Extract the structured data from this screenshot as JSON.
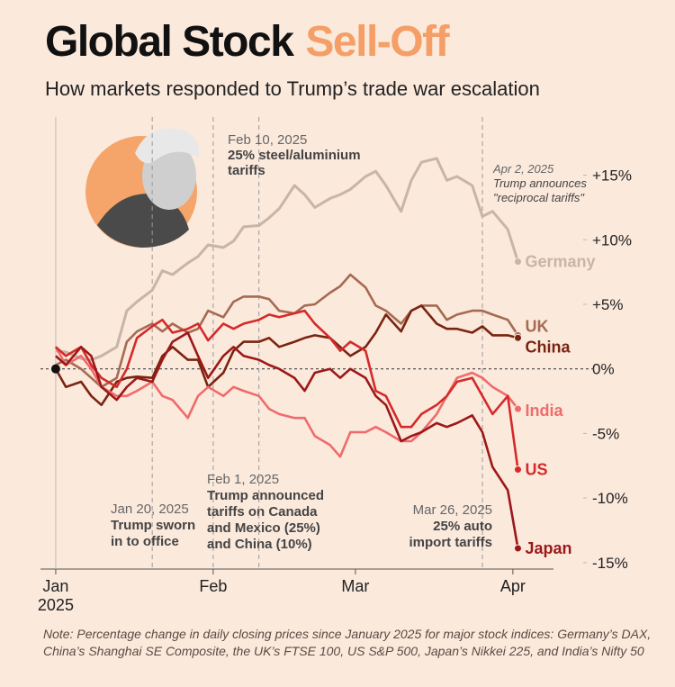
{
  "chart_data": {
    "type": "line",
    "title": "Global Stock",
    "title_highlight": "Sell-Off",
    "subtitle": "How markets responded to Trump’s trade war escalation",
    "note": "Note: Percentage change in daily closing prices since January 2025 for major stock indices: Germany’s DAX, China’s Shanghai SE Composite, the UK’s FTSE 100, US S&P 500, Japan’s Nikkei 225, and India’s Nifty 50",
    "x_axis_year": "2025",
    "x": [
      1,
      3,
      6,
      8,
      10,
      13,
      15,
      17,
      20,
      22,
      24,
      27,
      29,
      31,
      34,
      36,
      38,
      41,
      43,
      45,
      48,
      50,
      52,
      55,
      57,
      59,
      62,
      64,
      66,
      69,
      71,
      73,
      76,
      78,
      80,
      83,
      85,
      87,
      90,
      92
    ],
    "xlim": [
      -2,
      99
    ],
    "xticks": [
      {
        "value": 1,
        "label": "Jan"
      },
      {
        "value": 32,
        "label": "Feb"
      },
      {
        "value": 60,
        "label": "Mar"
      },
      {
        "value": 91,
        "label": "Apr"
      }
    ],
    "ylim": [
      -15.5,
      19.5
    ],
    "yticks": [
      {
        "value": 15,
        "label": "+15%"
      },
      {
        "value": 10,
        "label": "+10%"
      },
      {
        "value": 5,
        "label": "+5%"
      },
      {
        "value": 0,
        "label": "0%"
      },
      {
        "value": -5,
        "label": "-5%"
      },
      {
        "value": -10,
        "label": "-10%"
      },
      {
        "value": -15,
        "label": "-15%"
      }
    ],
    "series": [
      {
        "name": "Germany",
        "color": "#c9b4a5",
        "values": [
          1.4,
          1.3,
          0.8,
          0.7,
          1.0,
          1.7,
          4.5,
          5.2,
          6.1,
          7.6,
          7.3,
          8.2,
          8.7,
          9.6,
          9.4,
          9.9,
          11.0,
          11.1,
          11.7,
          12.4,
          14.2,
          13.5,
          12.5,
          13.2,
          13.5,
          13.9,
          14.9,
          15.3,
          14.2,
          12.2,
          14.6,
          16.0,
          16.3,
          14.6,
          14.9,
          14.2,
          11.8,
          12.2,
          10.8,
          8.3
        ]
      },
      {
        "name": "UK",
        "color": "#a56a52",
        "values": [
          0.3,
          0.7,
          0,
          -0.7,
          -1.4,
          -0.7,
          2.1,
          2.9,
          3.5,
          2.9,
          3.5,
          2.8,
          3.1,
          4.5,
          4.0,
          5.2,
          5.6,
          5.6,
          5.4,
          4.5,
          4.3,
          4.9,
          5.0,
          5.9,
          6.4,
          7.3,
          6.3,
          4.9,
          4.5,
          3.5,
          4.5,
          4.9,
          4.9,
          3.8,
          4.2,
          4.5,
          4.5,
          4.2,
          3.8,
          2.6
        ]
      },
      {
        "name": "China",
        "color": "#7a2410",
        "values": [
          0,
          -1.4,
          -1.0,
          -2.1,
          -2.8,
          -1.0,
          -0.7,
          -0.6,
          -0.7,
          1.0,
          1.7,
          0.7,
          0.7,
          -1.4,
          -0.3,
          1.4,
          2.1,
          2.1,
          2.4,
          1.7,
          2.1,
          2.4,
          2.6,
          2.4,
          1.7,
          1.0,
          1.7,
          2.8,
          4.2,
          2.9,
          4.5,
          4.9,
          3.5,
          3.1,
          3.1,
          2.8,
          3.3,
          2.6,
          2.6,
          2.4
        ]
      },
      {
        "name": "India",
        "color": "#ef6b6b",
        "values": [
          1.7,
          0.3,
          1.0,
          0,
          -1.4,
          -2.1,
          -2.1,
          -1.7,
          -1.0,
          -2.1,
          -2.4,
          -3.8,
          -2.1,
          -1.4,
          -2.1,
          -1.4,
          -1.7,
          -2.1,
          -3.1,
          -3.5,
          -3.8,
          -3.8,
          -5.2,
          -5.9,
          -6.8,
          -4.9,
          -4.9,
          -4.5,
          -4.9,
          -5.6,
          -5.6,
          -4.9,
          -3.5,
          -2.1,
          -0.7,
          -0.3,
          -0.7,
          -1.4,
          -2.1,
          -3.1
        ]
      },
      {
        "name": "US",
        "color": "#d42a2a",
        "values": [
          1.7,
          1.0,
          1.7,
          0.3,
          -0.7,
          -1.4,
          0,
          2.4,
          3.3,
          3.8,
          2.8,
          3.1,
          3.5,
          2.2,
          3.5,
          3.1,
          3.5,
          3.8,
          4.2,
          4.0,
          4.3,
          4.5,
          3.5,
          2.4,
          1.4,
          2.1,
          1.4,
          -1.7,
          -2.1,
          -4.5,
          -4.5,
          -3.5,
          -2.8,
          -2.1,
          -1.0,
          -0.7,
          -2.1,
          -3.5,
          -2.1,
          -7.8
        ]
      },
      {
        "name": "Japan",
        "color": "#9c1818",
        "values": [
          1.0,
          0.3,
          1.7,
          1.0,
          -1.4,
          -2.4,
          -1.4,
          -0.7,
          -1.0,
          0.7,
          2.1,
          2.8,
          1.0,
          -0.7,
          1.0,
          1.7,
          1.0,
          0.7,
          0.3,
          0,
          -0.7,
          -1.7,
          -0.3,
          0,
          -0.7,
          0,
          -0.7,
          -2.1,
          -2.8,
          -5.6,
          -5.2,
          -4.9,
          -4.2,
          -4.5,
          -4.2,
          -3.6,
          -4.9,
          -7.6,
          -9.4,
          -13.9
        ]
      }
    ],
    "annotations": [
      {
        "x": 20,
        "date": "Jan 20, 2025",
        "lines": [
          "Trump sworn",
          "in to office"
        ]
      },
      {
        "x": 32,
        "date": "Feb 1, 2025",
        "lines": [
          "Trump announced",
          "tariffs on Canada",
          "and Mexico (25%)",
          "and China (10%)"
        ]
      },
      {
        "x": 41,
        "date": "Feb 10, 2025",
        "lines": [
          "25% steel/aluminium",
          "tariffs"
        ]
      },
      {
        "x": 85,
        "date": "Mar 26, 2025",
        "lines": [
          "25% auto",
          "import tariffs"
        ]
      },
      {
        "x": 92,
        "date": "Apr 2, 2025",
        "lines": [
          "Trump announces",
          "\"reciprocal tariffs\""
        ]
      }
    ]
  }
}
